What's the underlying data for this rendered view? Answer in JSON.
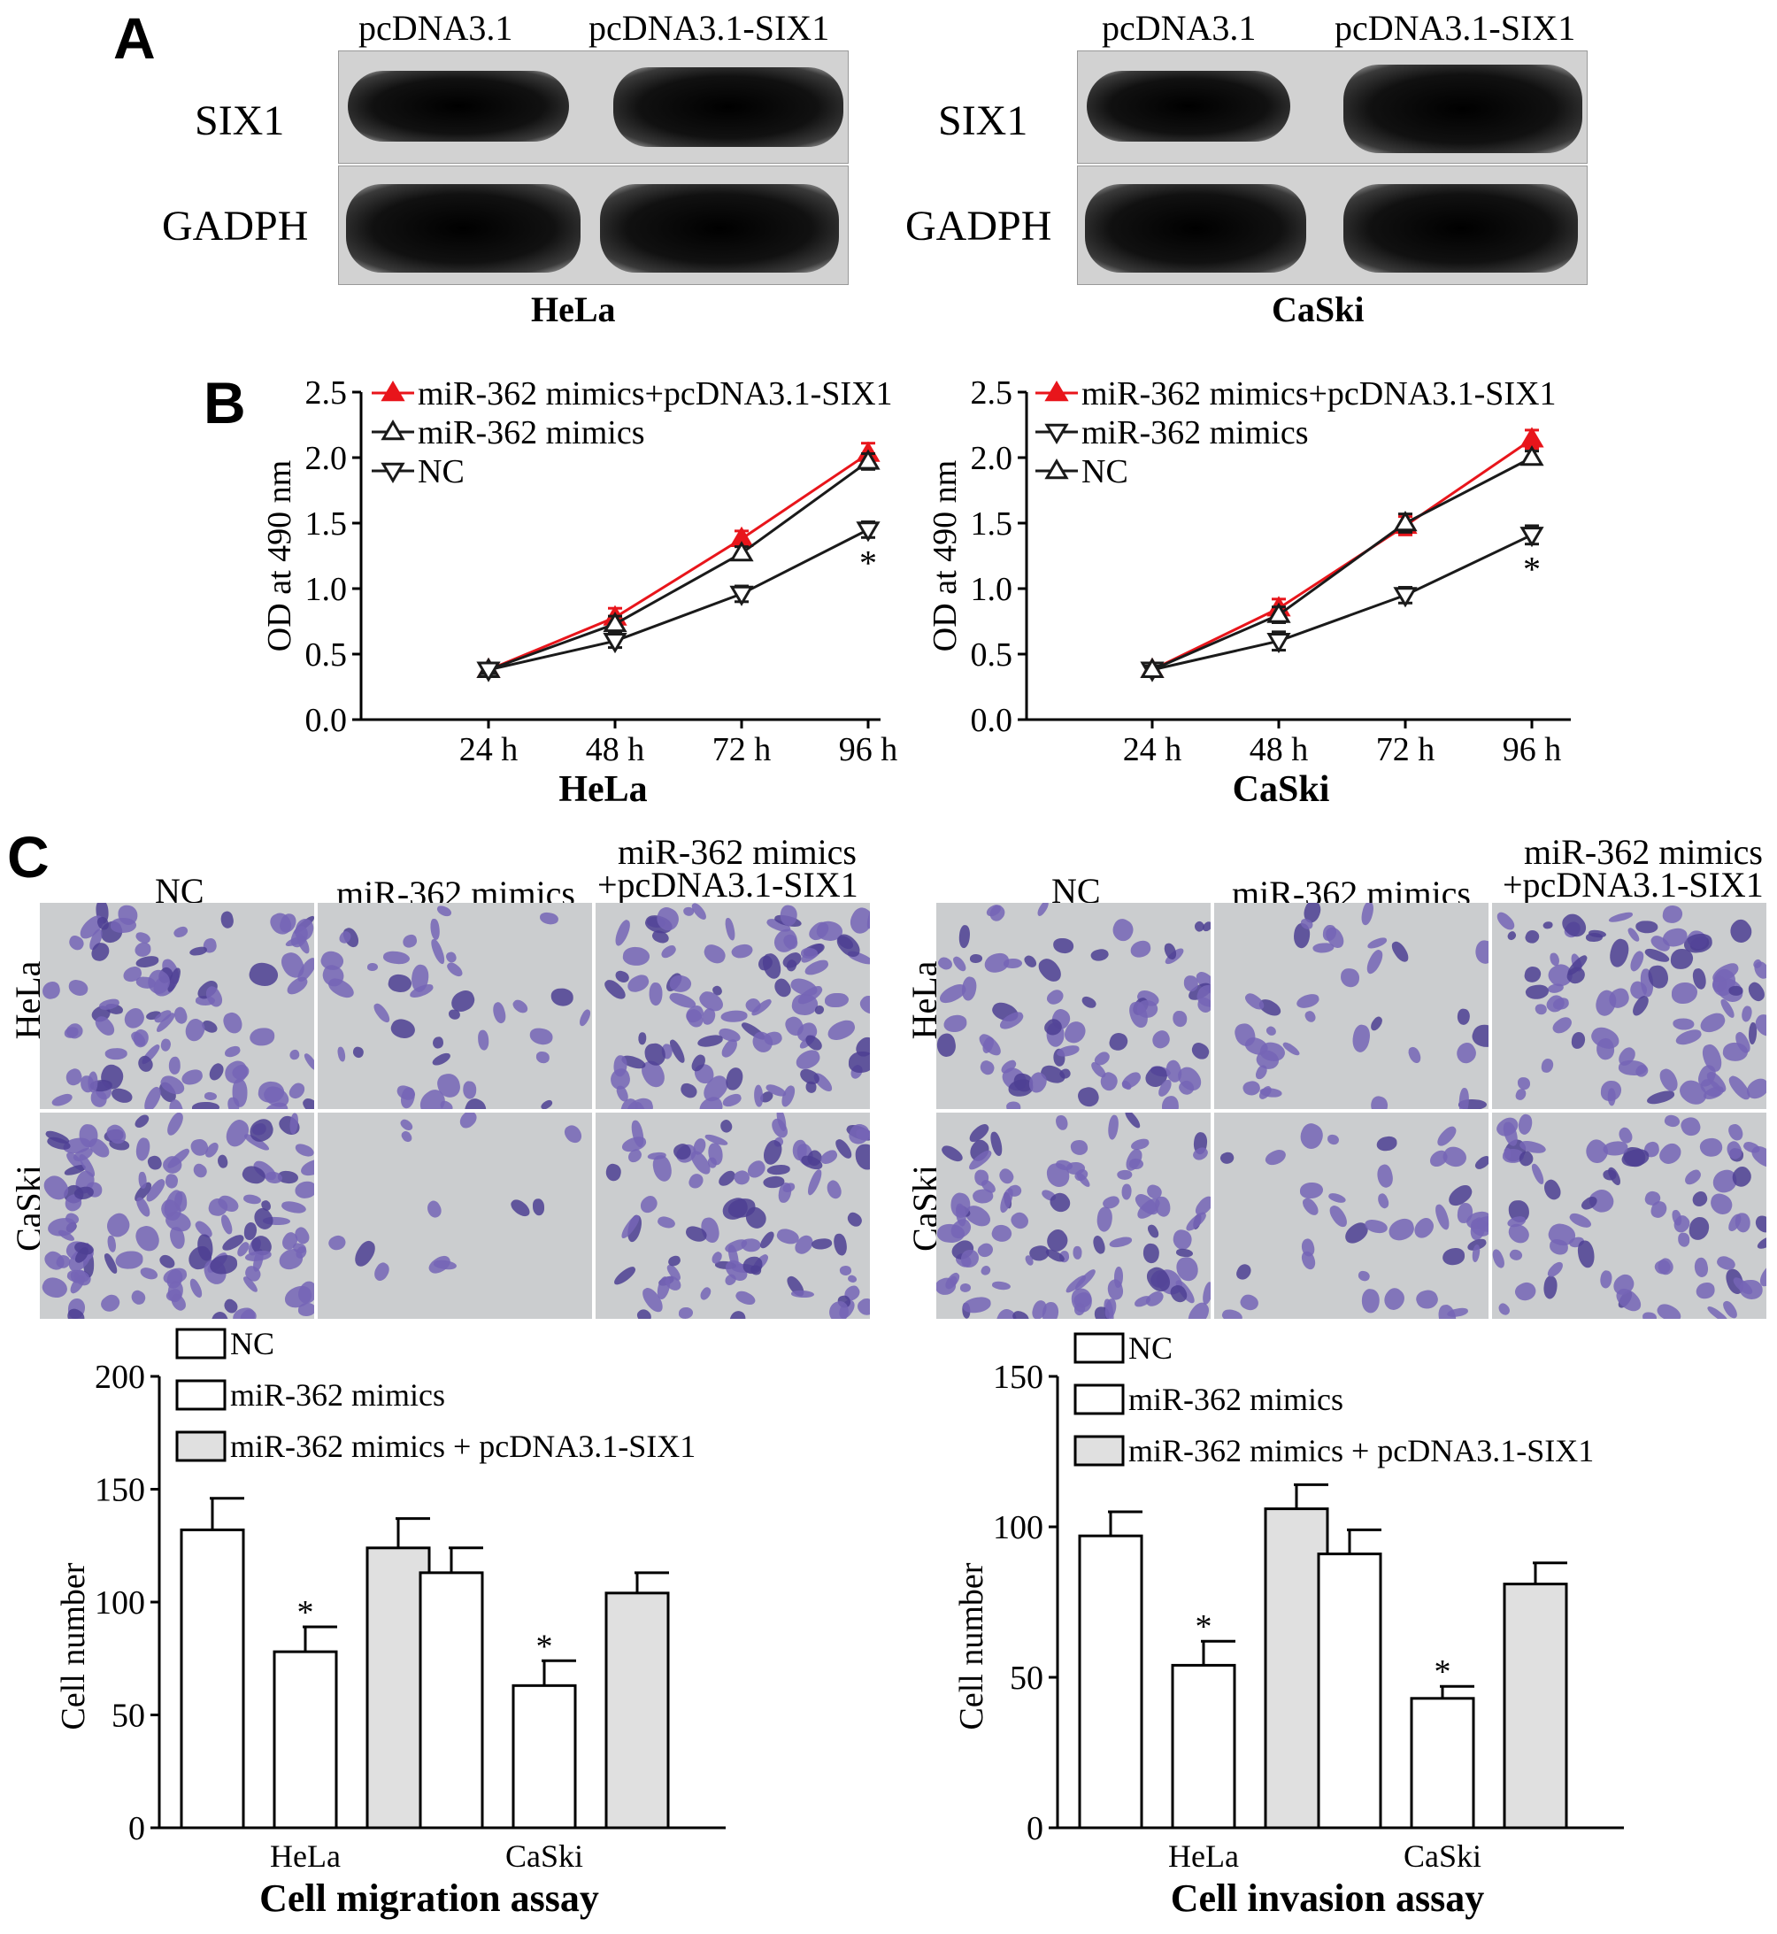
{
  "panels": {
    "a": "A",
    "b": "B",
    "c": "C"
  },
  "western": {
    "left": {
      "lane1": "pcDNA3.1",
      "lane2": "pcDNA3.1-SIX1",
      "row1": "SIX1",
      "row2": "GADPH",
      "cell_line": "HeLa"
    },
    "right": {
      "lane1": "pcDNA3.1",
      "lane2": "pcDNA3.1-SIX1",
      "row1": "SIX1",
      "row2": "GADPH",
      "cell_line": "CaSki"
    }
  },
  "micrographs": {
    "left": {
      "col1": "NC",
      "col2": "miR-362 mimics",
      "col3_line1": "miR-362 mimics",
      "col3_line2": "+pcDNA3.1-SIX1",
      "row1": "HeLa",
      "row2": "CaSki"
    },
    "right": {
      "col1": "NC",
      "col2": "miR-362 mimics",
      "col3_line1": "miR-362 mimics",
      "col3_line2": "+pcDNA3.1-SIX1",
      "row1": "HeLa",
      "row2": "CaSki"
    }
  },
  "colors": {
    "red_series": "#e8151b",
    "black_series": "#1a1a1a",
    "gray_bar": "#e0e0e0",
    "stain": "#6a5aa8"
  },
  "chart_data": [
    {
      "type": "line",
      "xlabel": "HeLa",
      "ylabel": "OD at 490 nm",
      "x": [
        "24 h",
        "48 h",
        "72 h",
        "96 h"
      ],
      "ylim": [
        0.0,
        2.5
      ],
      "yticks": [
        "0.0",
        "0.5",
        "1.0",
        "1.5",
        "2.0",
        "2.5"
      ],
      "legend_position": "top-left",
      "annotations": [
        {
          "x": "96 h",
          "text": "*"
        }
      ],
      "series": [
        {
          "name": "miR-362 mimics+pcDNA3.1-SIX1",
          "marker": "triangle-up-filled",
          "color": "#e8151b",
          "values": [
            0.38,
            0.78,
            1.38,
            2.03
          ],
          "err": [
            0.03,
            0.07,
            0.06,
            0.08
          ]
        },
        {
          "name": "miR-362 mimics",
          "marker": "triangle-up-open",
          "color": "#1a1a1a",
          "values": [
            0.38,
            0.73,
            1.27,
            1.97
          ],
          "err": [
            0.03,
            0.06,
            0.05,
            0.06
          ]
        },
        {
          "name": "NC",
          "marker": "triangle-down-open",
          "color": "#1a1a1a",
          "values": [
            0.38,
            0.6,
            0.96,
            1.45
          ],
          "err": [
            0.03,
            0.05,
            0.06,
            0.06
          ]
        }
      ]
    },
    {
      "type": "line",
      "xlabel": "CaSki",
      "ylabel": "OD at 490 nm",
      "x": [
        "24 h",
        "48 h",
        "72 h",
        "96 h"
      ],
      "ylim": [
        0.0,
        2.5
      ],
      "yticks": [
        "0.0",
        "0.5",
        "1.0",
        "1.5",
        "2.0",
        "2.5"
      ],
      "legend_position": "top-left",
      "annotations": [
        {
          "x": "96 h",
          "text": "*"
        }
      ],
      "series": [
        {
          "name": "miR-362 mimics+pcDNA3.1-SIX1",
          "marker": "triangle-up-filled",
          "color": "#e8151b",
          "values": [
            0.38,
            0.85,
            1.48,
            2.14
          ],
          "err": [
            0.03,
            0.07,
            0.07,
            0.07
          ]
        },
        {
          "name": "miR-362 mimics",
          "marker": "triangle-down-open",
          "color": "#1a1a1a",
          "values": [
            0.38,
            0.6,
            0.95,
            1.41
          ],
          "err": [
            0.03,
            0.07,
            0.06,
            0.07
          ]
        },
        {
          "name": "NC",
          "marker": "triangle-up-open",
          "color": "#1a1a1a",
          "values": [
            0.38,
            0.8,
            1.5,
            2.0
          ],
          "err": [
            0.03,
            0.06,
            0.07,
            0.05
          ]
        }
      ]
    },
    {
      "type": "bar",
      "title": "",
      "xlabel": "Cell migration assay",
      "ylabel": "Cell number",
      "categories": [
        "HeLa",
        "CaSki"
      ],
      "ylim": [
        0,
        200
      ],
      "yticks": [
        "0",
        "50",
        "100",
        "150",
        "200"
      ],
      "legend_position": "top-left",
      "series": [
        {
          "name": "NC",
          "fill": "#ffffff",
          "values": [
            132,
            113
          ],
          "err": [
            14,
            11
          ]
        },
        {
          "name": "miR-362 mimics",
          "fill": "#ffffff",
          "values": [
            78,
            63
          ],
          "err": [
            11,
            11
          ],
          "significant": [
            true,
            true
          ]
        },
        {
          "name": "miR-362 mimics + pcDNA3.1-SIX1",
          "fill": "#e0e0e0",
          "values": [
            124,
            104
          ],
          "err": [
            13,
            9
          ]
        }
      ]
    },
    {
      "type": "bar",
      "title": "",
      "xlabel": "Cell invasion assay",
      "ylabel": "Cell number",
      "categories": [
        "HeLa",
        "CaSki"
      ],
      "ylim": [
        0,
        150
      ],
      "yticks": [
        "0",
        "50",
        "100",
        "150"
      ],
      "legend_position": "top-left",
      "series": [
        {
          "name": "NC",
          "fill": "#ffffff",
          "values": [
            97,
            91
          ],
          "err": [
            8,
            8
          ]
        },
        {
          "name": "miR-362 mimics",
          "fill": "#ffffff",
          "values": [
            54,
            43
          ],
          "err": [
            8,
            4
          ],
          "significant": [
            true,
            true
          ]
        },
        {
          "name": "miR-362 mimics + pcDNA3.1-SIX1",
          "fill": "#e0e0e0",
          "values": [
            106,
            81
          ],
          "err": [
            8,
            7
          ]
        }
      ]
    }
  ]
}
